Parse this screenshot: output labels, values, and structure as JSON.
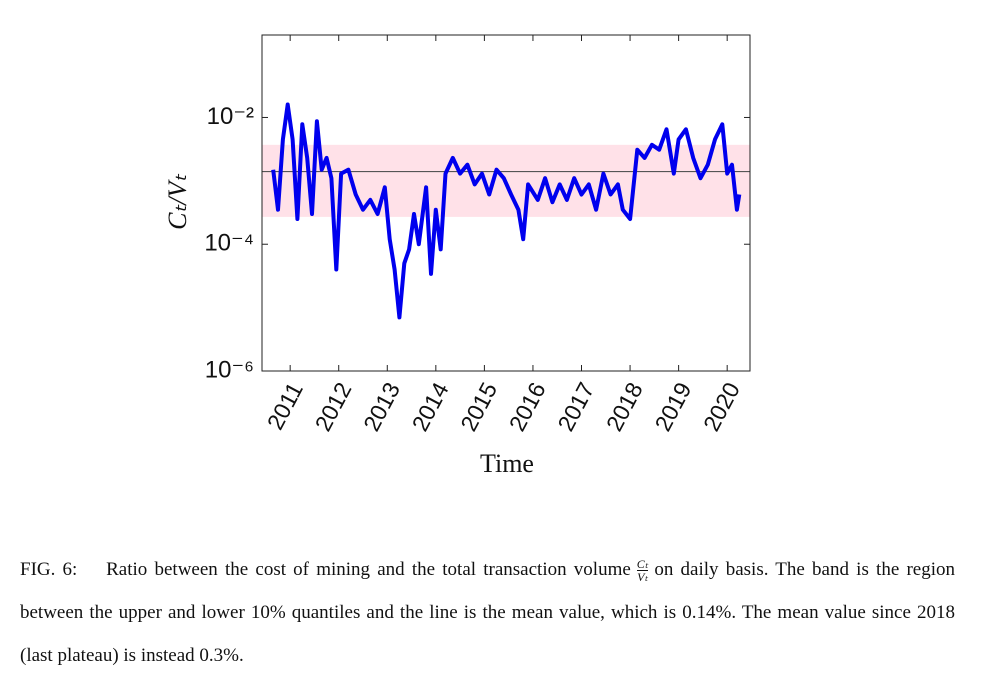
{
  "chart_data": {
    "type": "line",
    "ylog": true,
    "xlabel": "Time",
    "ylabel": "Cₜ/Vₜ",
    "xlim": [
      2010.42,
      2020.47
    ],
    "ylim": [
      1e-06,
      0.2
    ],
    "xticks": [
      2011,
      2012,
      2013,
      2014,
      2015,
      2016,
      2017,
      2018,
      2019,
      2020
    ],
    "yticks": [
      {
        "value": 1e-06,
        "label": "10⁻⁶"
      },
      {
        "value": 0.0001,
        "label": "10⁻⁴"
      },
      {
        "value": 0.01,
        "label": "10⁻²"
      }
    ],
    "band": {
      "lower": 0.00027,
      "upper": 0.0037,
      "color": "#ffe1e8"
    },
    "mean": {
      "value": 0.0014,
      "color": "#555555"
    },
    "series": [
      {
        "color": "#0000ee",
        "x": [
          2010.65,
          2010.75,
          2010.85,
          2010.95,
          2011.05,
          2011.15,
          2011.25,
          2011.35,
          2011.45,
          2011.55,
          2011.65,
          2011.75,
          2011.85,
          2011.95,
          2012.05,
          2012.2,
          2012.35,
          2012.5,
          2012.65,
          2012.8,
          2012.95,
          2013.05,
          2013.15,
          2013.25,
          2013.35,
          2013.45,
          2013.55,
          2013.65,
          2013.8,
          2013.9,
          2014.0,
          2014.1,
          2014.2,
          2014.35,
          2014.5,
          2014.65,
          2014.8,
          2014.95,
          2015.1,
          2015.25,
          2015.4,
          2015.55,
          2015.7,
          2015.8,
          2015.9,
          2016.1,
          2016.25,
          2016.4,
          2016.55,
          2016.7,
          2016.85,
          2017.0,
          2017.15,
          2017.3,
          2017.45,
          2017.6,
          2017.75,
          2017.85,
          2018.0,
          2018.15,
          2018.3,
          2018.45,
          2018.6,
          2018.75,
          2018.9,
          2019.0,
          2019.15,
          2019.3,
          2019.45,
          2019.6,
          2019.75,
          2019.9,
          2020.0,
          2020.1,
          2020.2,
          2020.25
        ],
        "values": [
          0.0015,
          0.00035,
          0.0045,
          0.016,
          0.0045,
          0.00025,
          0.0078,
          0.0023,
          0.0003,
          0.0087,
          0.0015,
          0.0023,
          0.0011,
          4e-05,
          0.0013,
          0.0015,
          0.00061,
          0.00035,
          0.0005,
          0.0003,
          0.00079,
          0.00012,
          4e-05,
          7e-06,
          5e-05,
          8.3e-05,
          0.0003,
          0.0001,
          0.00079,
          3.4e-05,
          0.00035,
          8.3e-05,
          0.0013,
          0.0023,
          0.0013,
          0.0018,
          0.00088,
          0.0013,
          0.00061,
          0.0015,
          0.0011,
          0.00061,
          0.00035,
          0.00012,
          0.00088,
          0.0005,
          0.0011,
          0.00046,
          0.00088,
          0.0005,
          0.0011,
          0.00061,
          0.00088,
          0.00035,
          0.0013,
          0.00061,
          0.00088,
          0.00035,
          0.00025,
          0.0031,
          0.0023,
          0.0037,
          0.0031,
          0.0065,
          0.0013,
          0.0045,
          0.0065,
          0.0023,
          0.0011,
          0.0018,
          0.0045,
          0.0078,
          0.0013,
          0.0018,
          0.00035,
          0.00061
        ]
      }
    ]
  },
  "caption": {
    "label": "FIG. 6:",
    "text_before": "Ratio between the cost of mining and the total transaction volume",
    "fraction": {
      "numerator": "Cₜ",
      "denominator": "Vₜ"
    },
    "text_after": "on daily basis. The band is the region between the upper and lower 10% quantiles and the line is the mean value, which is 0.14%. The mean value since 2018 (last plateau) is instead 0.3%."
  }
}
